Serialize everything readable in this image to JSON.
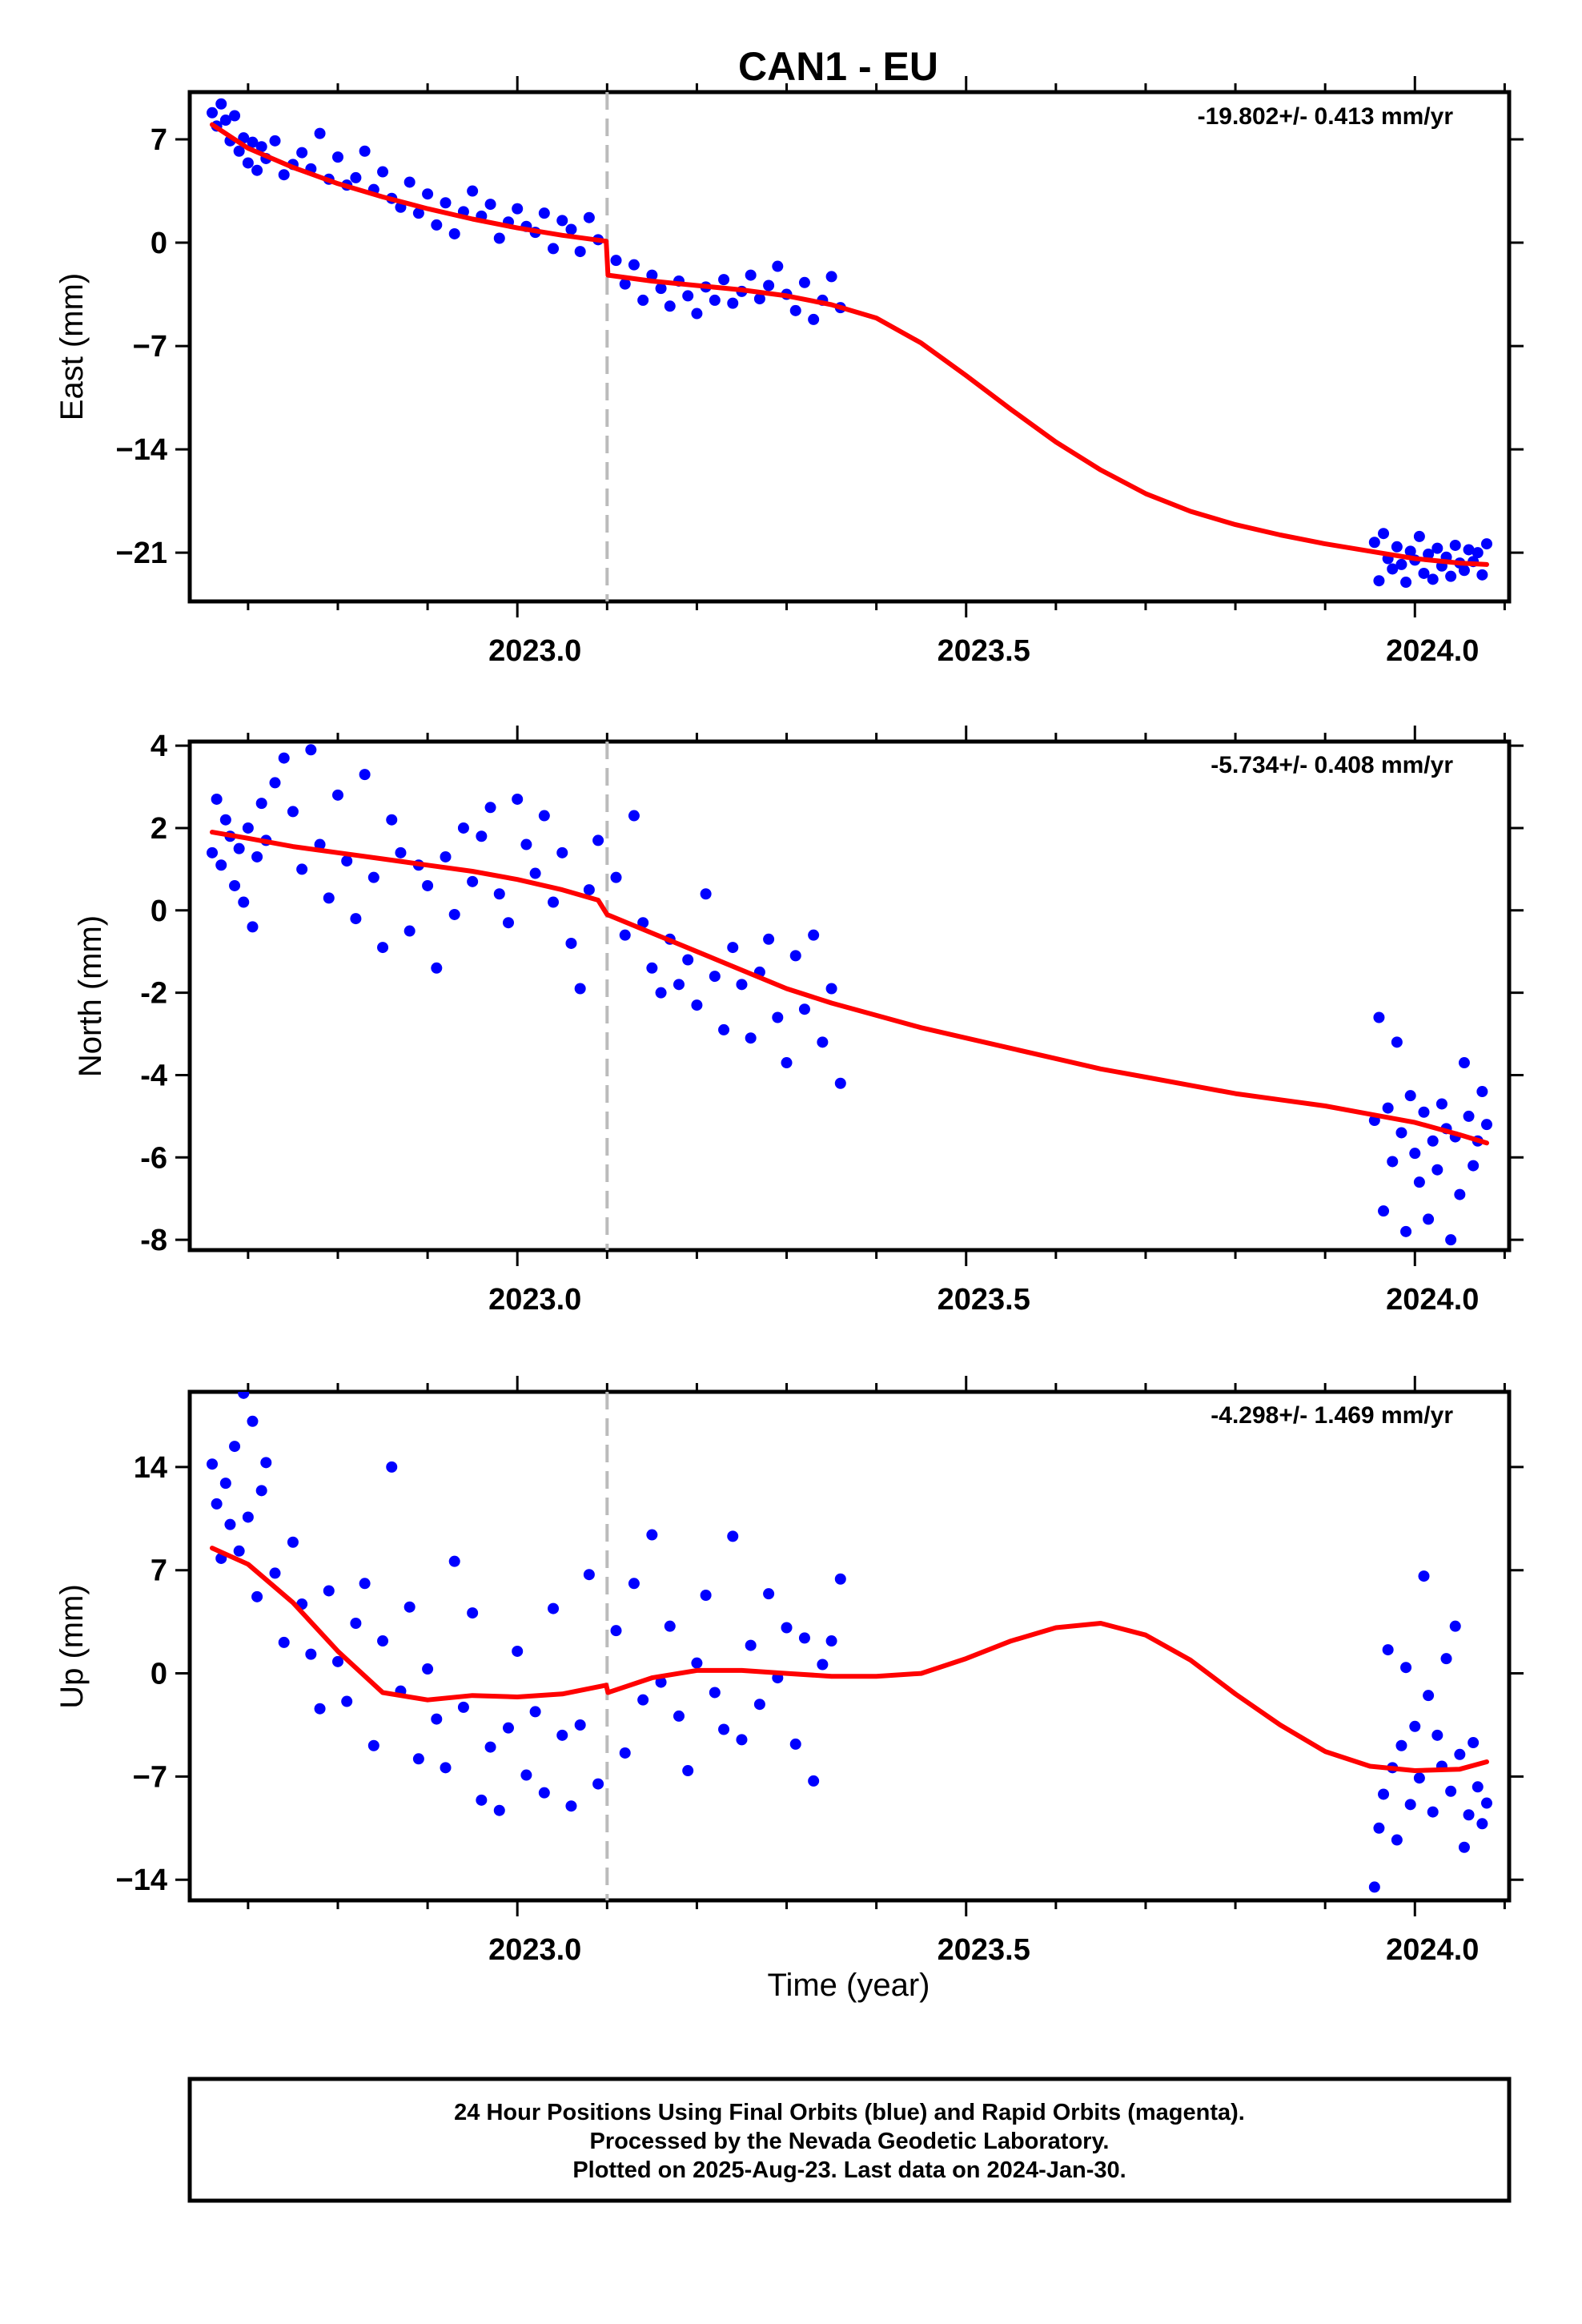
{
  "title": "CAN1 - EU",
  "xlabel": "Time (year)",
  "caption": [
    "24 Hour Positions Using Final Orbits (blue) and Rapid Orbits (magenta).",
    "Processed by the Nevada Geodetic Laboratory.",
    "Plotted on 2025-Aug-23. Last data on 2024-Jan-30."
  ],
  "colors": {
    "points": "#0000ff",
    "model": "#ff0000",
    "event_line": "#bbbbbb"
  },
  "chart_data": [
    {
      "type": "scatter",
      "component": "East",
      "ylabel": "East (mm)",
      "rate": "-19.802+/- 0.413 mm/yr",
      "xlim": [
        2022.635,
        2024.105
      ],
      "ylim": [
        -24.3,
        10.2
      ],
      "yticks": [
        7,
        0,
        -7,
        -14,
        -21
      ],
      "ytick_labels": [
        "7",
        "0",
        "−7",
        "−14",
        "−21"
      ],
      "xticks": [
        2023.0,
        2023.5,
        2024.0
      ],
      "xtick_labels": [
        "2023.0",
        "2023.5",
        "2024.0"
      ],
      "event_x": 2023.1,
      "grid": false,
      "series": [
        {
          "role": "points",
          "x": [
            2022.66,
            2022.665,
            2022.67,
            2022.675,
            2022.68,
            2022.685,
            2022.69,
            2022.695,
            2022.7,
            2022.705,
            2022.71,
            2022.715,
            2022.72,
            2022.73,
            2022.74,
            2022.75,
            2022.76,
            2022.77,
            2022.78,
            2022.79,
            2022.8,
            2022.81,
            2022.82,
            2022.83,
            2022.84,
            2022.85,
            2022.86,
            2022.87,
            2022.88,
            2022.89,
            2022.9,
            2022.91,
            2022.92,
            2022.93,
            2022.94,
            2022.95,
            2022.96,
            2022.97,
            2022.98,
            2022.99,
            2023.0,
            2023.01,
            2023.02,
            2023.03,
            2023.04,
            2023.05,
            2023.06,
            2023.07,
            2023.08,
            2023.09,
            2023.11,
            2023.12,
            2023.13,
            2023.14,
            2023.15,
            2023.16,
            2023.17,
            2023.18,
            2023.19,
            2023.2,
            2023.21,
            2023.22,
            2023.23,
            2023.24,
            2023.25,
            2023.26,
            2023.27,
            2023.28,
            2023.29,
            2023.3,
            2023.31,
            2023.32,
            2023.33,
            2023.34,
            2023.35,
            2023.36,
            2023.955,
            2023.96,
            2023.965,
            2023.97,
            2023.975,
            2023.98,
            2023.985,
            2023.99,
            2023.995,
            2024.0,
            2024.005,
            2024.01,
            2024.015,
            2024.02,
            2024.025,
            2024.03,
            2024.035,
            2024.04,
            2024.045,
            2024.05,
            2024.055,
            2024.06,
            2024.065,
            2024.07,
            2024.075,
            2024.08
          ],
          "y": [
            8.8,
            7.9,
            9.4,
            8.3,
            6.9,
            8.6,
            6.2,
            7.1,
            5.4,
            6.8,
            4.9,
            6.5,
            5.7,
            6.9,
            4.6,
            5.3,
            6.1,
            5.0,
            7.4,
            4.3,
            5.8,
            3.9,
            4.4,
            6.2,
            3.6,
            4.8,
            3.0,
            2.4,
            4.1,
            2.0,
            3.3,
            1.2,
            2.7,
            0.6,
            2.1,
            3.5,
            1.8,
            2.6,
            0.3,
            1.4,
            2.3,
            1.1,
            0.7,
            2.0,
            -0.4,
            1.5,
            0.9,
            -0.6,
            1.7,
            0.2,
            -1.2,
            -2.8,
            -1.5,
            -3.9,
            -2.2,
            -3.1,
            -4.3,
            -2.6,
            -3.6,
            -4.8,
            -3.0,
            -3.9,
            -2.5,
            -4.1,
            -3.3,
            -2.2,
            -3.8,
            -2.9,
            -1.6,
            -3.5,
            -4.6,
            -2.7,
            -5.2,
            -3.9,
            -2.3,
            -4.4,
            -20.3,
            -22.9,
            -19.7,
            -21.4,
            -22.1,
            -20.6,
            -21.8,
            -23.0,
            -20.9,
            -21.5,
            -19.9,
            -22.4,
            -21.1,
            -22.8,
            -20.7,
            -21.9,
            -21.3,
            -22.6,
            -20.5,
            -21.7,
            -22.2,
            -20.8,
            -21.6,
            -21.0,
            -22.5,
            -20.4
          ]
        },
        {
          "role": "model",
          "x": [
            2022.66,
            2022.7,
            2022.75,
            2022.8,
            2022.85,
            2022.9,
            2022.95,
            2023.0,
            2023.05,
            2023.099,
            2023.101,
            2023.15,
            2023.2,
            2023.25,
            2023.3,
            2023.35,
            2023.4,
            2023.45,
            2023.5,
            2023.55,
            2023.6,
            2023.65,
            2023.7,
            2023.75,
            2023.8,
            2023.85,
            2023.9,
            2023.95,
            2024.0,
            2024.05,
            2024.08
          ],
          "y": [
            8.0,
            6.4,
            5.1,
            4.0,
            3.1,
            2.3,
            1.6,
            1.0,
            0.5,
            0.1,
            -2.2,
            -2.6,
            -2.9,
            -3.2,
            -3.6,
            -4.2,
            -5.1,
            -6.8,
            -9.0,
            -11.3,
            -13.5,
            -15.4,
            -17.0,
            -18.2,
            -19.1,
            -19.8,
            -20.4,
            -20.9,
            -21.4,
            -21.7,
            -21.8
          ]
        }
      ]
    },
    {
      "type": "scatter",
      "component": "North",
      "ylabel": "North (mm)",
      "rate": "-5.734+/- 0.408 mm/yr",
      "xlim": [
        2022.635,
        2024.105
      ],
      "ylim": [
        -8.25,
        4.1
      ],
      "yticks": [
        4,
        2,
        0,
        -2,
        -4,
        -6,
        -8
      ],
      "ytick_labels": [
        "4",
        "2",
        "0",
        "-2",
        "-4",
        "-6",
        "-8"
      ],
      "xticks": [
        2023.0,
        2023.5,
        2024.0
      ],
      "xtick_labels": [
        "2023.0",
        "2023.5",
        "2024.0"
      ],
      "event_x": 2023.1,
      "grid": false,
      "series": [
        {
          "role": "points",
          "x": [
            2022.66,
            2022.665,
            2022.67,
            2022.675,
            2022.68,
            2022.685,
            2022.69,
            2022.695,
            2022.7,
            2022.705,
            2022.71,
            2022.715,
            2022.72,
            2022.73,
            2022.74,
            2022.75,
            2022.76,
            2022.77,
            2022.78,
            2022.79,
            2022.8,
            2022.81,
            2022.82,
            2022.83,
            2022.84,
            2022.85,
            2022.86,
            2022.87,
            2022.88,
            2022.89,
            2022.9,
            2022.91,
            2022.92,
            2022.93,
            2022.94,
            2022.95,
            2022.96,
            2022.97,
            2022.98,
            2022.99,
            2023.0,
            2023.01,
            2023.02,
            2023.03,
            2023.04,
            2023.05,
            2023.06,
            2023.07,
            2023.08,
            2023.09,
            2023.11,
            2023.12,
            2023.13,
            2023.14,
            2023.15,
            2023.16,
            2023.17,
            2023.18,
            2023.19,
            2023.2,
            2023.21,
            2023.22,
            2023.23,
            2023.24,
            2023.25,
            2023.26,
            2023.27,
            2023.28,
            2023.29,
            2023.3,
            2023.31,
            2023.32,
            2023.33,
            2023.34,
            2023.35,
            2023.36,
            2023.955,
            2023.96,
            2023.965,
            2023.97,
            2023.975,
            2023.98,
            2023.985,
            2023.99,
            2023.995,
            2024.0,
            2024.005,
            2024.01,
            2024.015,
            2024.02,
            2024.025,
            2024.03,
            2024.035,
            2024.04,
            2024.045,
            2024.05,
            2024.055,
            2024.06,
            2024.065,
            2024.07,
            2024.075,
            2024.08
          ],
          "y": [
            1.4,
            2.7,
            1.1,
            2.2,
            1.8,
            0.6,
            1.5,
            0.2,
            2.0,
            -0.4,
            1.3,
            2.6,
            1.7,
            3.1,
            3.7,
            2.4,
            1.0,
            3.9,
            1.6,
            0.3,
            2.8,
            1.2,
            -0.2,
            3.3,
            0.8,
            -0.9,
            2.2,
            1.4,
            -0.5,
            1.1,
            0.6,
            -1.4,
            1.3,
            -0.1,
            2.0,
            0.7,
            1.8,
            2.5,
            0.4,
            -0.3,
            2.7,
            1.6,
            0.9,
            2.3,
            0.2,
            1.4,
            -0.8,
            -1.9,
            0.5,
            1.7,
            0.8,
            -0.6,
            2.3,
            -0.3,
            -1.4,
            -2.0,
            -0.7,
            -1.8,
            -1.2,
            -2.3,
            0.4,
            -1.6,
            -2.9,
            -0.9,
            -1.8,
            -3.1,
            -1.5,
            -0.7,
            -2.6,
            -3.7,
            -1.1,
            -2.4,
            -0.6,
            -3.2,
            -1.9,
            -4.2,
            -5.1,
            -2.6,
            -7.3,
            -4.8,
            -6.1,
            -3.2,
            -5.4,
            -7.8,
            -4.5,
            -5.9,
            -6.6,
            -4.9,
            -7.5,
            -5.6,
            -6.3,
            -4.7,
            -5.3,
            -8.0,
            -5.5,
            -6.9,
            -3.7,
            -5.0,
            -6.2,
            -5.6,
            -4.4,
            -5.2
          ]
        },
        {
          "role": "model",
          "x": [
            2022.66,
            2022.7,
            2022.75,
            2022.8,
            2022.85,
            2022.9,
            2022.95,
            2023.0,
            2023.05,
            2023.09,
            2023.1,
            2023.15,
            2023.2,
            2023.25,
            2023.3,
            2023.35,
            2023.4,
            2023.45,
            2023.5,
            2023.55,
            2023.6,
            2023.65,
            2023.7,
            2023.75,
            2023.8,
            2023.85,
            2023.9,
            2023.95,
            2024.0,
            2024.05,
            2024.08
          ],
          "y": [
            1.9,
            1.75,
            1.55,
            1.4,
            1.25,
            1.1,
            0.95,
            0.75,
            0.5,
            0.25,
            -0.1,
            -0.55,
            -1.0,
            -1.45,
            -1.9,
            -2.25,
            -2.55,
            -2.85,
            -3.1,
            -3.35,
            -3.6,
            -3.85,
            -4.05,
            -4.25,
            -4.45,
            -4.6,
            -4.75,
            -4.95,
            -5.15,
            -5.45,
            -5.65
          ]
        }
      ]
    },
    {
      "type": "scatter",
      "component": "Up",
      "ylabel": "Up (mm)",
      "rate": "-4.298+/- 1.469 mm/yr",
      "xlim": [
        2022.635,
        2024.105
      ],
      "ylim": [
        -15.4,
        19.1
      ],
      "yticks": [
        14,
        7,
        0,
        -7,
        -14
      ],
      "ytick_labels": [
        "14",
        "7",
        "0",
        "−7",
        "−14"
      ],
      "xticks": [
        2023.0,
        2023.5,
        2024.0
      ],
      "xtick_labels": [
        "2023.0",
        "2023.5",
        "2024.0"
      ],
      "event_x": 2023.1,
      "grid": false,
      "series": [
        {
          "role": "points",
          "x": [
            2022.66,
            2022.665,
            2022.67,
            2022.675,
            2022.68,
            2022.685,
            2022.69,
            2022.695,
            2022.7,
            2022.705,
            2022.71,
            2022.715,
            2022.72,
            2022.73,
            2022.74,
            2022.75,
            2022.76,
            2022.77,
            2022.78,
            2022.79,
            2022.8,
            2022.81,
            2022.82,
            2022.83,
            2022.84,
            2022.85,
            2022.86,
            2022.87,
            2022.88,
            2022.89,
            2022.9,
            2022.91,
            2022.92,
            2022.93,
            2022.94,
            2022.95,
            2022.96,
            2022.97,
            2022.98,
            2022.99,
            2023.0,
            2023.01,
            2023.02,
            2023.03,
            2023.04,
            2023.05,
            2023.06,
            2023.07,
            2023.08,
            2023.09,
            2023.11,
            2023.12,
            2023.13,
            2023.14,
            2023.15,
            2023.16,
            2023.17,
            2023.18,
            2023.19,
            2023.2,
            2023.21,
            2023.22,
            2023.23,
            2023.24,
            2023.25,
            2023.26,
            2023.27,
            2023.28,
            2023.29,
            2023.3,
            2023.31,
            2023.32,
            2023.33,
            2023.34,
            2023.35,
            2023.36,
            2023.955,
            2023.96,
            2023.965,
            2023.97,
            2023.975,
            2023.98,
            2023.985,
            2023.99,
            2023.995,
            2024.0,
            2024.005,
            2024.01,
            2024.015,
            2024.02,
            2024.025,
            2024.03,
            2024.035,
            2024.04,
            2024.045,
            2024.05,
            2024.055,
            2024.06,
            2024.065,
            2024.07,
            2024.075,
            2024.08
          ],
          "y": [
            14.2,
            11.5,
            7.8,
            12.9,
            10.1,
            15.4,
            8.3,
            19.0,
            10.6,
            17.1,
            5.2,
            12.4,
            14.3,
            6.8,
            2.1,
            8.9,
            4.7,
            1.3,
            -2.4,
            5.6,
            0.8,
            -1.9,
            3.4,
            6.1,
            -4.9,
            2.2,
            14.0,
            -1.2,
            4.5,
            -5.8,
            0.3,
            -3.1,
            -6.4,
            7.6,
            -2.3,
            4.1,
            -8.6,
            -5.0,
            -9.3,
            -3.7,
            1.5,
            -6.9,
            -2.6,
            -8.1,
            4.4,
            -4.2,
            -9.0,
            -3.5,
            6.7,
            -7.5,
            2.9,
            -5.4,
            6.1,
            -1.8,
            9.4,
            -0.6,
            3.2,
            -2.9,
            -6.6,
            0.7,
            5.3,
            -1.3,
            -3.8,
            9.3,
            -4.5,
            1.9,
            -2.1,
            5.4,
            -0.3,
            3.1,
            -4.8,
            2.4,
            -7.3,
            0.6,
            2.2,
            6.4,
            -14.5,
            -10.5,
            -8.2,
            1.6,
            -6.4,
            -11.3,
            -4.9,
            0.4,
            -8.9,
            -3.6,
            -7.1,
            6.6,
            -1.5,
            -9.4,
            -4.2,
            -6.3,
            1.0,
            -8.0,
            3.2,
            -5.5,
            -11.8,
            -9.6,
            -4.7,
            -7.7,
            -10.2,
            -8.8
          ]
        },
        {
          "role": "model",
          "x": [
            2022.66,
            2022.7,
            2022.75,
            2022.8,
            2022.85,
            2022.9,
            2022.95,
            2023.0,
            2023.05,
            2023.099,
            2023.101,
            2023.15,
            2023.2,
            2023.25,
            2023.3,
            2023.35,
            2023.4,
            2023.45,
            2023.5,
            2023.55,
            2023.6,
            2023.65,
            2023.7,
            2023.75,
            2023.8,
            2023.85,
            2023.9,
            2023.95,
            2024.0,
            2024.05,
            2024.08
          ],
          "y": [
            8.5,
            7.4,
            4.8,
            1.5,
            -1.3,
            -1.8,
            -1.5,
            -1.6,
            -1.4,
            -0.8,
            -1.3,
            -0.3,
            0.2,
            0.2,
            0.0,
            -0.2,
            -0.2,
            0.0,
            1.0,
            2.2,
            3.1,
            3.4,
            2.6,
            0.9,
            -1.4,
            -3.5,
            -5.3,
            -6.3,
            -6.6,
            -6.5,
            -6.0
          ]
        }
      ]
    }
  ]
}
